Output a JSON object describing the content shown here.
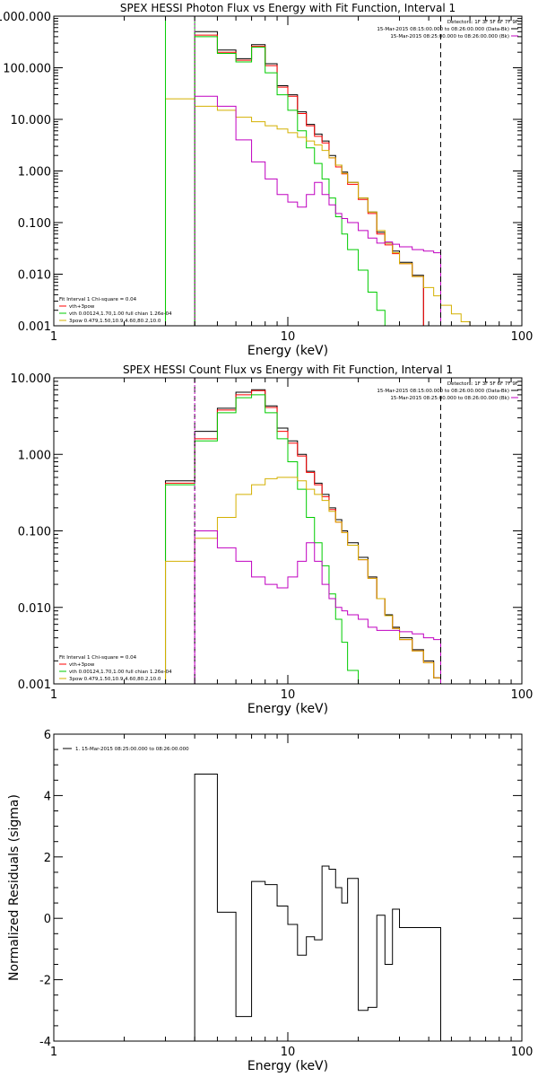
{
  "chart_data": [
    {
      "type": "line",
      "title": "SPEX HESSI Photon Flux vs Energy with Fit Function, Interval 1",
      "xlabel": "Energy (keV)",
      "ylabel": "",
      "xscale": "log",
      "yscale": "log",
      "xlim": [
        1,
        100
      ],
      "ylim": [
        0.001,
        1000
      ],
      "xticks": [
        {
          "value": 1,
          "label": "1"
        },
        {
          "value": 10,
          "label": "10"
        },
        {
          "value": 100,
          "label": "100"
        }
      ],
      "yticks": [
        {
          "value": 1000,
          "label": "1000.000"
        },
        {
          "value": 100,
          "label": "100.000"
        },
        {
          "value": 10,
          "label": "10.000"
        },
        {
          "value": 1,
          "label": "1.000"
        },
        {
          "value": 0.1,
          "label": "0.100"
        },
        {
          "value": 0.01,
          "label": "0.010"
        },
        {
          "value": 0.001,
          "label": "0.001"
        }
      ],
      "legend_topright": [
        {
          "text": "Detectors: 1F 3F 5F 6F 7F 9F",
          "color": ""
        },
        {
          "text": "15-Mar-2015 08:15:00.000 to 08:26:00.000 (Data-Bk)",
          "color": "#000000"
        },
        {
          "text": "15-Mar-2015 08:25:00.000 to 08:26:00.000 (Bk)",
          "color": "#c000c0"
        }
      ],
      "legend_bottomleft": [
        {
          "text": "Fit Interval 1    Chi-square = 0.04",
          "color": ""
        },
        {
          "text": "vth+3pow",
          "color": "#ff0000"
        },
        {
          "text": "vth 0.00124,1.70,1.00  full chian 1.26e-04",
          "color": "#00cc00"
        },
        {
          "text": "3pow 0.479,1.50,10.9,4.60,80.2,10.0",
          "color": "#d4b000"
        }
      ],
      "vlines": [
        {
          "x": 3.0,
          "color": "#00cc00",
          "dash": false
        },
        {
          "x": 4.0,
          "color": "#00cc00",
          "dash": false
        },
        {
          "x": 4.0,
          "color": "#c000c0",
          "dash": true
        },
        {
          "x": 45,
          "color": "#000000",
          "dash": true
        }
      ],
      "bin_edges": [
        3.0,
        4.0,
        5.0,
        6.0,
        7.0,
        8.0,
        9.0,
        10.0,
        11.0,
        12.0,
        13.0,
        14.0,
        15.0,
        16.0,
        17.0,
        18.0,
        20.0,
        22.0,
        24.0,
        26.0,
        28.0,
        30.0,
        34.0,
        38.0,
        42.0,
        45.0,
        50.0,
        55.0,
        60.0,
        65.0,
        70.0
      ],
      "series": [
        {
          "name": "Data-Bk",
          "color": "#000000",
          "values": [
            null,
            500,
            220,
            150,
            280,
            120,
            45,
            30,
            14,
            8,
            5.2,
            3.8,
            2.0,
            1.3,
            0.95,
            0.6,
            0.3,
            0.16,
            0.065,
            0.04,
            0.028,
            0.017,
            0.0095,
            null,
            null,
            null,
            null,
            null,
            null,
            null
          ]
        },
        {
          "name": "vth+3pow",
          "color": "#ff0000",
          "values": [
            null,
            430,
            200,
            140,
            260,
            110,
            42,
            28,
            13,
            7.5,
            4.7,
            3.5,
            1.8,
            1.2,
            0.88,
            0.55,
            0.28,
            0.15,
            0.06,
            0.037,
            0.025,
            0.016,
            0.009,
            null,
            null,
            null,
            null,
            null,
            null,
            null
          ]
        },
        {
          "name": "vth",
          "color": "#00cc00",
          "values": [
            null,
            400,
            190,
            130,
            250,
            80,
            30,
            15,
            6,
            2.8,
            1.4,
            0.7,
            0.3,
            0.13,
            0.06,
            0.03,
            0.012,
            0.0045,
            0.002,
            null,
            null,
            null,
            null,
            null,
            null,
            null,
            null,
            null,
            null,
            null
          ]
        },
        {
          "name": "3pow",
          "color": "#d4b000",
          "values": [
            25,
            18,
            15,
            11,
            9,
            7.5,
            6.5,
            5.5,
            4.5,
            3.8,
            3.2,
            2.5,
            1.8,
            1.3,
            0.9,
            0.6,
            0.3,
            0.16,
            0.07,
            0.04,
            0.026,
            0.016,
            0.009,
            0.0055,
            0.0038,
            0.0025,
            0.0017,
            0.0012,
            null,
            null
          ]
        },
        {
          "name": "Bk",
          "color": "#c000c0",
          "values": [
            null,
            28,
            18,
            4,
            1.5,
            0.7,
            0.35,
            0.25,
            0.2,
            0.35,
            0.6,
            0.35,
            0.22,
            0.15,
            0.12,
            0.1,
            0.07,
            0.05,
            0.04,
            0.042,
            0.038,
            0.034,
            0.03,
            0.028,
            0.026,
            null,
            null,
            null,
            null,
            null
          ]
        }
      ]
    },
    {
      "type": "line",
      "title": "SPEX HESSI Count Flux vs Energy with Fit Function, Interval 1",
      "xlabel": "Energy (keV)",
      "ylabel": "",
      "xscale": "log",
      "yscale": "log",
      "xlim": [
        1,
        100
      ],
      "ylim": [
        0.001,
        10
      ],
      "xticks": [
        {
          "value": 1,
          "label": "1"
        },
        {
          "value": 10,
          "label": "10"
        },
        {
          "value": 100,
          "label": "100"
        }
      ],
      "yticks": [
        {
          "value": 10,
          "label": "10.000"
        },
        {
          "value": 1,
          "label": "1.000"
        },
        {
          "value": 0.1,
          "label": "0.100"
        },
        {
          "value": 0.01,
          "label": "0.010"
        },
        {
          "value": 0.001,
          "label": "0.001"
        }
      ],
      "legend_topright": [
        {
          "text": "Detectors: 1F 3F 5F 6F 7F 9F",
          "color": ""
        },
        {
          "text": "15-Mar-2015 08:15:00.000 to 08:26:00.000 (Data-Bk)",
          "color": "#000000"
        },
        {
          "text": "15-Mar-2015 08:25:00.000 to 08:26:00.000 (Bk)",
          "color": "#c000c0"
        }
      ],
      "legend_bottomleft": [
        {
          "text": "Fit Interval 1    Chi-square = 0.04",
          "color": ""
        },
        {
          "text": "vth+3pow",
          "color": "#ff0000"
        },
        {
          "text": "vth 0.00124,1.70,1.00  full chian 1.26e-04",
          "color": "#00cc00"
        },
        {
          "text": "3pow 0.479,1.50,10.9,4.60,80.2,10.0",
          "color": "#d4b000"
        }
      ],
      "vlines": [
        {
          "x": 4.0,
          "color": "#000000",
          "dash": true
        },
        {
          "x": 4.0,
          "color": "#c000c0",
          "dash": true
        },
        {
          "x": 45,
          "color": "#000000",
          "dash": true
        }
      ],
      "bin_edges": [
        3.0,
        4.0,
        5.0,
        6.0,
        7.0,
        8.0,
        9.0,
        10.0,
        11.0,
        12.0,
        13.0,
        14.0,
        15.0,
        16.0,
        17.0,
        18.0,
        20.0,
        22.0,
        24.0,
        26.0,
        28.0,
        30.0,
        34.0,
        38.0,
        42.0,
        45.0
      ],
      "series": [
        {
          "name": "Data-Bk",
          "color": "#000000",
          "values": [
            0.45,
            2.0,
            4.0,
            6.5,
            7.0,
            4.3,
            2.2,
            1.5,
            1.0,
            0.6,
            0.42,
            0.3,
            0.2,
            0.14,
            0.1,
            0.07,
            0.045,
            0.025,
            0.013,
            0.008,
            0.0055,
            0.004,
            0.0028,
            0.002,
            0.0012
          ]
        },
        {
          "name": "vth+3pow",
          "color": "#ff0000",
          "values": [
            0.42,
            1.6,
            3.8,
            6.0,
            6.8,
            4.1,
            2.0,
            1.4,
            0.95,
            0.58,
            0.4,
            0.28,
            0.19,
            0.13,
            0.095,
            0.065,
            0.042,
            0.024,
            0.013,
            0.0078,
            0.0053,
            0.0038,
            0.0027,
            0.0019,
            0.0012
          ]
        },
        {
          "name": "vth",
          "color": "#00cc00",
          "values": [
            0.4,
            1.5,
            3.5,
            5.5,
            6.0,
            3.5,
            1.6,
            0.8,
            0.35,
            0.15,
            0.07,
            0.035,
            0.015,
            0.007,
            0.0035,
            0.0015,
            0.001,
            null,
            null,
            null,
            null,
            null,
            null,
            null,
            null
          ]
        },
        {
          "name": "3pow",
          "color": "#d4b000",
          "values": [
            0.04,
            0.08,
            0.15,
            0.3,
            0.4,
            0.48,
            0.5,
            0.5,
            0.45,
            0.35,
            0.3,
            0.25,
            0.18,
            0.13,
            0.095,
            0.065,
            0.042,
            0.024,
            0.013,
            0.0078,
            0.0053,
            0.0038,
            0.0027,
            0.0019,
            0.0012
          ]
        },
        {
          "name": "Bk",
          "color": "#c000c0",
          "values": [
            null,
            0.1,
            0.06,
            0.04,
            0.025,
            0.02,
            0.018,
            0.025,
            0.04,
            0.07,
            0.04,
            0.02,
            0.013,
            0.01,
            0.009,
            0.008,
            0.007,
            0.0055,
            0.005,
            0.005,
            0.005,
            0.0048,
            0.0045,
            0.004,
            0.0038
          ]
        }
      ]
    },
    {
      "type": "line",
      "title": "",
      "xlabel": "Energy (keV)",
      "ylabel": "Normalized Residuals (sigma)",
      "xscale": "log",
      "yscale": "linear",
      "xlim": [
        1,
        100
      ],
      "ylim": [
        -4,
        6
      ],
      "xticks": [
        {
          "value": 1,
          "label": "1"
        },
        {
          "value": 10,
          "label": "10"
        },
        {
          "value": 100,
          "label": "100"
        }
      ],
      "yticks": [
        {
          "value": 6,
          "label": "6"
        },
        {
          "value": 4,
          "label": "4"
        },
        {
          "value": 2,
          "label": "2"
        },
        {
          "value": 0,
          "label": "0"
        },
        {
          "value": -2,
          "label": "-2"
        },
        {
          "value": -4,
          "label": "-4"
        }
      ],
      "legend_topleft": [
        {
          "text": "1. 15-Mar-2015 08:25:00.000 to 08:26:00.000",
          "color": "#000000"
        }
      ],
      "bin_edges": [
        4.0,
        5.0,
        6.0,
        7.0,
        8.0,
        9.0,
        10.0,
        11.0,
        12.0,
        13.0,
        14.0,
        15.0,
        16.0,
        17.0,
        18.0,
        20.0,
        22.0,
        24.0,
        26.0,
        28.0,
        30.0,
        34.0,
        38.0,
        42.0,
        45.0
      ],
      "series": [
        {
          "name": "",
          "color": "#000000",
          "values": [
            4.7,
            0.2,
            -3.2,
            1.2,
            1.1,
            0.4,
            -0.2,
            -1.2,
            -0.6,
            -0.7,
            1.7,
            1.6,
            1.0,
            0.5,
            1.3,
            -3.0,
            -2.9,
            0.1,
            -1.5,
            0.3,
            -0.3,
            -0.3,
            -0.3,
            -0.3
          ]
        }
      ]
    }
  ]
}
